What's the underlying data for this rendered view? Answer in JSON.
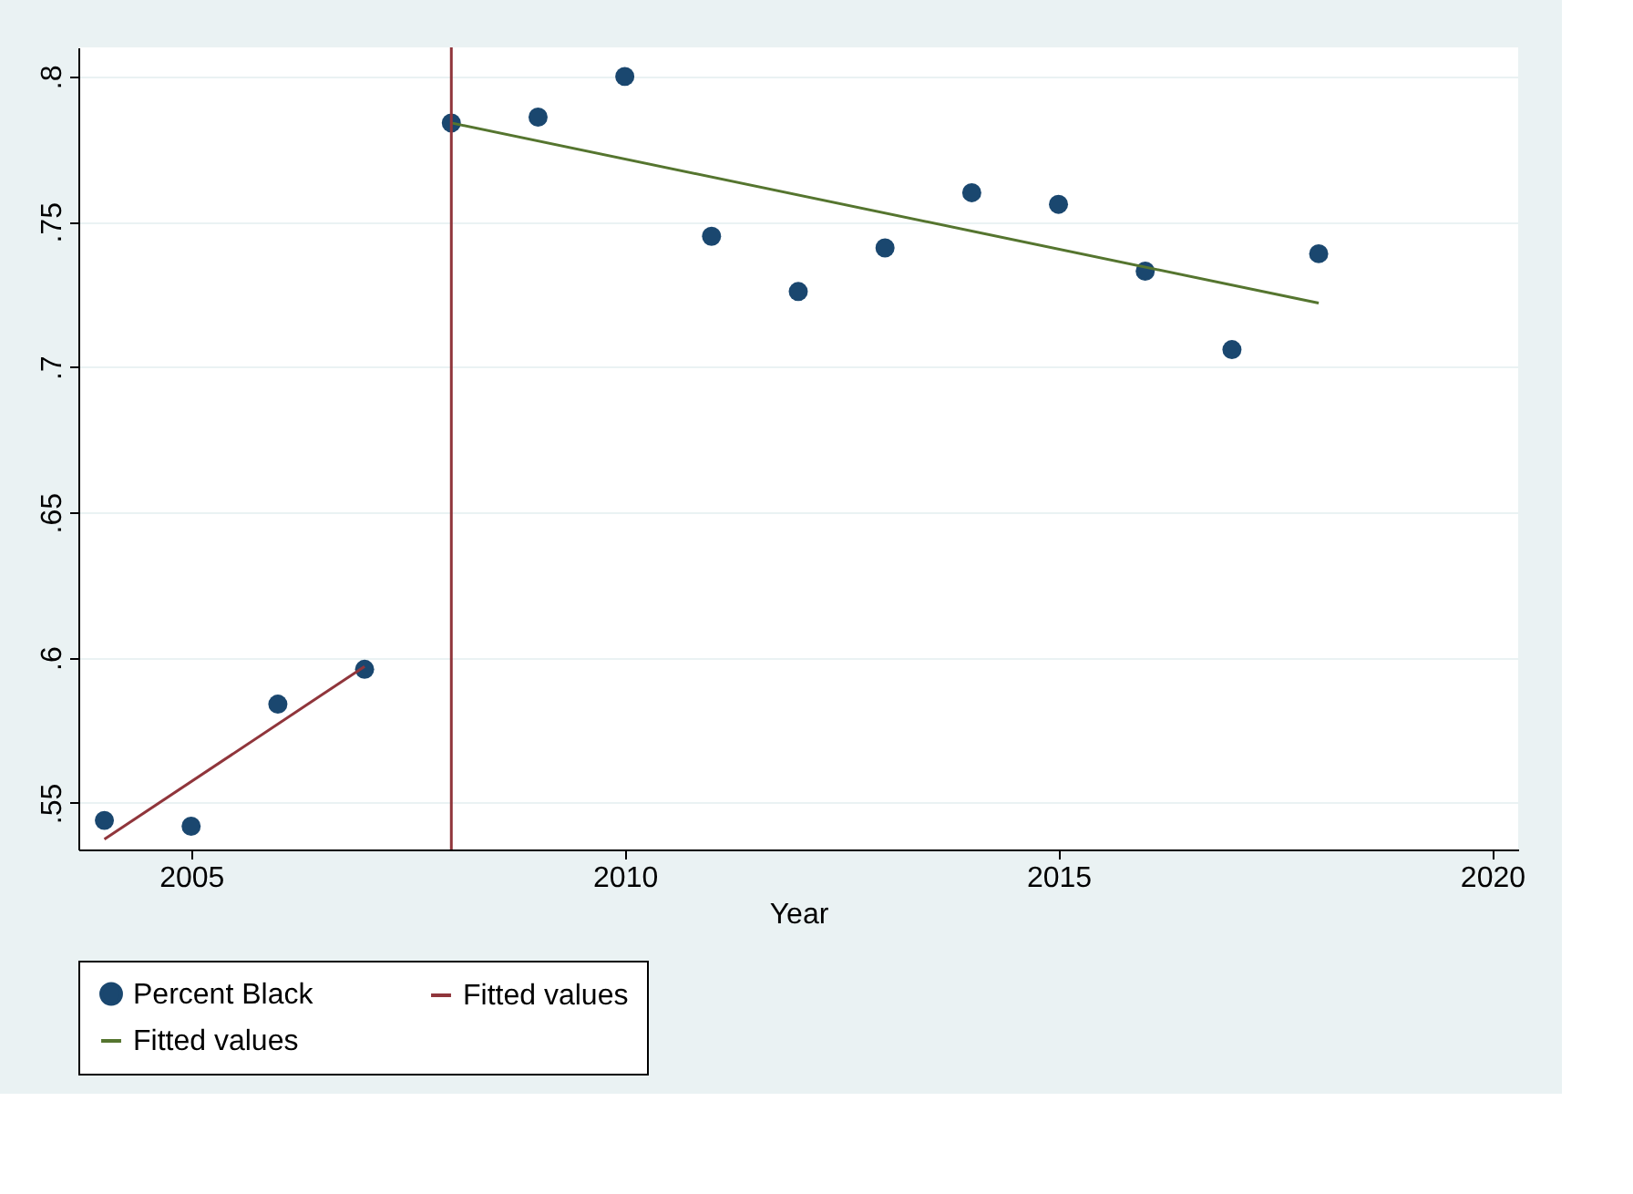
{
  "chart_data": {
    "type": "scatter",
    "xlabel": "Year",
    "x": [
      2004,
      2005,
      2006,
      2007,
      2008,
      2009,
      2010,
      2011,
      2012,
      2013,
      2014,
      2015,
      2016,
      2017,
      2018
    ],
    "series": [
      {
        "name": "Percent Black",
        "color": "#1a476f",
        "marker": "circle",
        "values": [
          0.544,
          0.542,
          0.584,
          0.596,
          0.784,
          0.786,
          0.8,
          0.745,
          0.726,
          0.741,
          0.76,
          0.756,
          0.733,
          0.706,
          0.739
        ]
      },
      {
        "name": "Fitted values",
        "type": "line",
        "color": "#90353b",
        "x": [
          2004,
          2007
        ],
        "values": [
          0.5375,
          0.597
        ]
      },
      {
        "name": "Fitted values",
        "type": "line",
        "color": "#55752f",
        "x": [
          2008,
          2018
        ],
        "values": [
          0.784,
          0.722
        ]
      }
    ],
    "ref_lines": [
      {
        "axis": "x",
        "value": 2008,
        "color": "#90353b"
      }
    ],
    "xlim": [
      2003.7,
      2020.3
    ],
    "xticks": [
      2005,
      2010,
      2015,
      2020
    ],
    "ylim": [
      0.534,
      0.81
    ],
    "yticks": [
      {
        "value": 0.55,
        "label": ".55"
      },
      {
        "value": 0.6,
        "label": ".6"
      },
      {
        "value": 0.65,
        "label": ".65"
      },
      {
        "value": 0.7,
        "label": ".7"
      },
      {
        "value": 0.75,
        "label": ".75"
      },
      {
        "value": 0.8,
        "label": ".8"
      }
    ],
    "grid": "y",
    "legend": "bottom"
  }
}
